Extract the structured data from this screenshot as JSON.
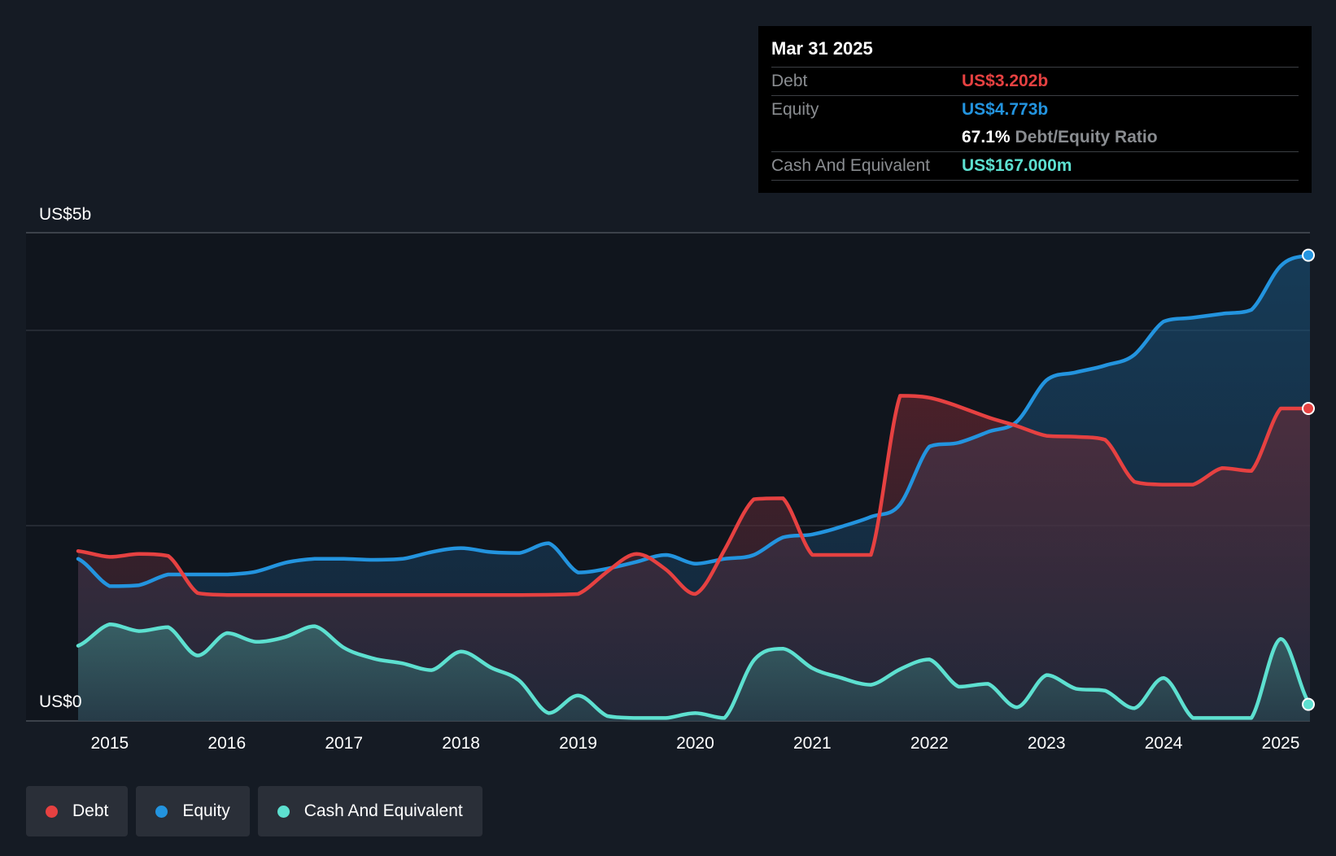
{
  "colors": {
    "debt": "#e64141",
    "equity": "#2394df",
    "cash": "#5de0d0",
    "background": "#151b24"
  },
  "tooltip": {
    "date": "Mar 31 2025",
    "debt_label": "Debt",
    "debt_value": "US$3.202b",
    "equity_label": "Equity",
    "equity_value": "US$4.773b",
    "ratio_value": "67.1%",
    "ratio_label": "Debt/Equity Ratio",
    "cash_label": "Cash And Equivalent",
    "cash_value": "US$167.000m"
  },
  "legend": [
    {
      "label": "Debt"
    },
    {
      "label": "Equity"
    },
    {
      "label": "Cash And Equivalent"
    }
  ],
  "chart_data": {
    "type": "area",
    "y_top_label": "US$5b",
    "y_bottom_label": "US$0",
    "ylim": [
      0,
      5
    ],
    "xlim": [
      2014.3,
      2025.25
    ],
    "x_ticks": [
      "2015",
      "2016",
      "2017",
      "2018",
      "2019",
      "2020",
      "2021",
      "2022",
      "2023",
      "2024",
      "2025"
    ],
    "legend_position": "bottom-left",
    "series": [
      {
        "name": "Debt",
        "points": [
          [
            2014.73,
            1.74
          ],
          [
            2015.0,
            1.68
          ],
          [
            2015.25,
            1.71
          ],
          [
            2015.5,
            1.69
          ],
          [
            2015.75,
            1.31
          ],
          [
            2016.0,
            1.29
          ],
          [
            2016.5,
            1.29
          ],
          [
            2017.0,
            1.29
          ],
          [
            2017.5,
            1.29
          ],
          [
            2018.0,
            1.29
          ],
          [
            2018.5,
            1.29
          ],
          [
            2019.0,
            1.3
          ],
          [
            2019.25,
            1.53
          ],
          [
            2019.5,
            1.71
          ],
          [
            2019.75,
            1.55
          ],
          [
            2020.0,
            1.3
          ],
          [
            2020.25,
            1.75
          ],
          [
            2020.5,
            2.27
          ],
          [
            2020.75,
            2.28
          ],
          [
            2021.0,
            1.7
          ],
          [
            2021.25,
            1.7
          ],
          [
            2021.5,
            1.7
          ],
          [
            2021.75,
            3.33
          ],
          [
            2022.0,
            3.31
          ],
          [
            2022.25,
            3.22
          ],
          [
            2022.5,
            3.11
          ],
          [
            2022.75,
            3.02
          ],
          [
            2023.0,
            2.92
          ],
          [
            2023.25,
            2.91
          ],
          [
            2023.5,
            2.88
          ],
          [
            2023.75,
            2.45
          ],
          [
            2024.0,
            2.42
          ],
          [
            2024.25,
            2.42
          ],
          [
            2024.5,
            2.59
          ],
          [
            2024.75,
            2.56
          ],
          [
            2025.0,
            3.2
          ],
          [
            2025.25,
            3.2
          ]
        ]
      },
      {
        "name": "Equity",
        "points": [
          [
            2014.73,
            1.66
          ],
          [
            2015.0,
            1.38
          ],
          [
            2015.25,
            1.39
          ],
          [
            2015.5,
            1.5
          ],
          [
            2015.75,
            1.5
          ],
          [
            2016.0,
            1.5
          ],
          [
            2016.25,
            1.53
          ],
          [
            2016.5,
            1.62
          ],
          [
            2016.75,
            1.66
          ],
          [
            2017.0,
            1.66
          ],
          [
            2017.25,
            1.65
          ],
          [
            2017.5,
            1.66
          ],
          [
            2017.75,
            1.73
          ],
          [
            2018.0,
            1.77
          ],
          [
            2018.25,
            1.73
          ],
          [
            2018.5,
            1.72
          ],
          [
            2018.75,
            1.82
          ],
          [
            2019.0,
            1.52
          ],
          [
            2019.25,
            1.56
          ],
          [
            2019.5,
            1.63
          ],
          [
            2019.75,
            1.7
          ],
          [
            2020.0,
            1.61
          ],
          [
            2020.25,
            1.66
          ],
          [
            2020.5,
            1.7
          ],
          [
            2020.75,
            1.88
          ],
          [
            2021.0,
            1.91
          ],
          [
            2021.25,
            1.99
          ],
          [
            2021.5,
            2.09
          ],
          [
            2021.75,
            2.22
          ],
          [
            2022.0,
            2.81
          ],
          [
            2022.25,
            2.85
          ],
          [
            2022.5,
            2.96
          ],
          [
            2022.75,
            3.07
          ],
          [
            2023.0,
            3.49
          ],
          [
            2023.25,
            3.57
          ],
          [
            2023.5,
            3.64
          ],
          [
            2023.75,
            3.75
          ],
          [
            2024.0,
            4.09
          ],
          [
            2024.25,
            4.13
          ],
          [
            2024.5,
            4.17
          ],
          [
            2024.75,
            4.21
          ],
          [
            2025.0,
            4.66
          ],
          [
            2025.25,
            4.77
          ]
        ]
      },
      {
        "name": "Cash And Equivalent",
        "points": [
          [
            2014.73,
            0.77
          ],
          [
            2015.0,
            0.99
          ],
          [
            2015.25,
            0.92
          ],
          [
            2015.5,
            0.96
          ],
          [
            2015.75,
            0.67
          ],
          [
            2016.0,
            0.9
          ],
          [
            2016.25,
            0.81
          ],
          [
            2016.5,
            0.86
          ],
          [
            2016.75,
            0.97
          ],
          [
            2017.0,
            0.75
          ],
          [
            2017.25,
            0.64
          ],
          [
            2017.5,
            0.59
          ],
          [
            2017.75,
            0.52
          ],
          [
            2018.0,
            0.71
          ],
          [
            2018.25,
            0.55
          ],
          [
            2018.5,
            0.41
          ],
          [
            2018.75,
            0.08
          ],
          [
            2019.0,
            0.26
          ],
          [
            2019.25,
            0.05
          ],
          [
            2019.5,
            0.03
          ],
          [
            2019.75,
            0.03
          ],
          [
            2020.0,
            0.08
          ],
          [
            2020.25,
            0.03
          ],
          [
            2020.5,
            0.62
          ],
          [
            2020.75,
            0.74
          ],
          [
            2021.0,
            0.54
          ],
          [
            2021.25,
            0.44
          ],
          [
            2021.5,
            0.37
          ],
          [
            2021.75,
            0.53
          ],
          [
            2022.0,
            0.63
          ],
          [
            2022.25,
            0.35
          ],
          [
            2022.5,
            0.38
          ],
          [
            2022.75,
            0.14
          ],
          [
            2023.0,
            0.47
          ],
          [
            2023.25,
            0.33
          ],
          [
            2023.5,
            0.31
          ],
          [
            2023.75,
            0.13
          ],
          [
            2024.0,
            0.44
          ],
          [
            2024.25,
            0.03
          ],
          [
            2024.5,
            0.03
          ],
          [
            2024.75,
            0.03
          ],
          [
            2025.0,
            0.84
          ],
          [
            2025.25,
            0.17
          ]
        ]
      }
    ]
  }
}
